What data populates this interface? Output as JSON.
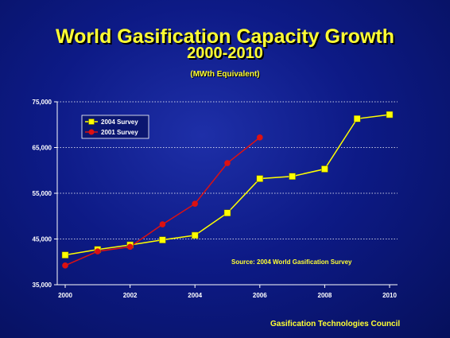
{
  "slide": {
    "title_line1": "World Gasification Capacity Growth",
    "title_line2": "2000-2010",
    "subtitle": "(MWth Equivalent)",
    "footer": "Gasification Technologies Council",
    "background_color": "#0d1a86"
  },
  "chart_data": {
    "type": "line",
    "title": "",
    "xlabel": "",
    "ylabel": "",
    "xlim": [
      2000,
      2010
    ],
    "ylim": [
      35000,
      75000
    ],
    "x_ticks": [
      2000,
      2002,
      2004,
      2006,
      2008,
      2010
    ],
    "x_tick_labels": [
      "2000",
      "2002",
      "2004",
      "2006",
      "2008",
      "2010"
    ],
    "y_ticks": [
      35000,
      45000,
      55000,
      65000,
      75000
    ],
    "y_tick_labels": [
      "35,000",
      "45,000",
      "55,000",
      "65,000",
      "75,000"
    ],
    "grid": "horizontal dotted",
    "legend_position": "top-left",
    "annotation": "Source:  2004 World Gasification Survey",
    "series": [
      {
        "name": "2004 Survey",
        "line_color": "#ffff00",
        "marker": "square",
        "marker_color": "#ffff00",
        "x": [
          2000,
          2001,
          2002,
          2003,
          2004,
          2005,
          2006,
          2007,
          2008,
          2009,
          2010
        ],
        "values": [
          41500,
          42700,
          43700,
          44800,
          45800,
          50700,
          58200,
          58700,
          60300,
          71300,
          72200
        ]
      },
      {
        "name": "2001 Survey",
        "line_color": "#dd1111",
        "marker": "circle",
        "marker_color": "#dd1111",
        "x": [
          2000,
          2001,
          2002,
          2003,
          2004,
          2005,
          2006
        ],
        "values": [
          39200,
          42300,
          43300,
          48200,
          52700,
          61600,
          67200
        ]
      }
    ]
  }
}
